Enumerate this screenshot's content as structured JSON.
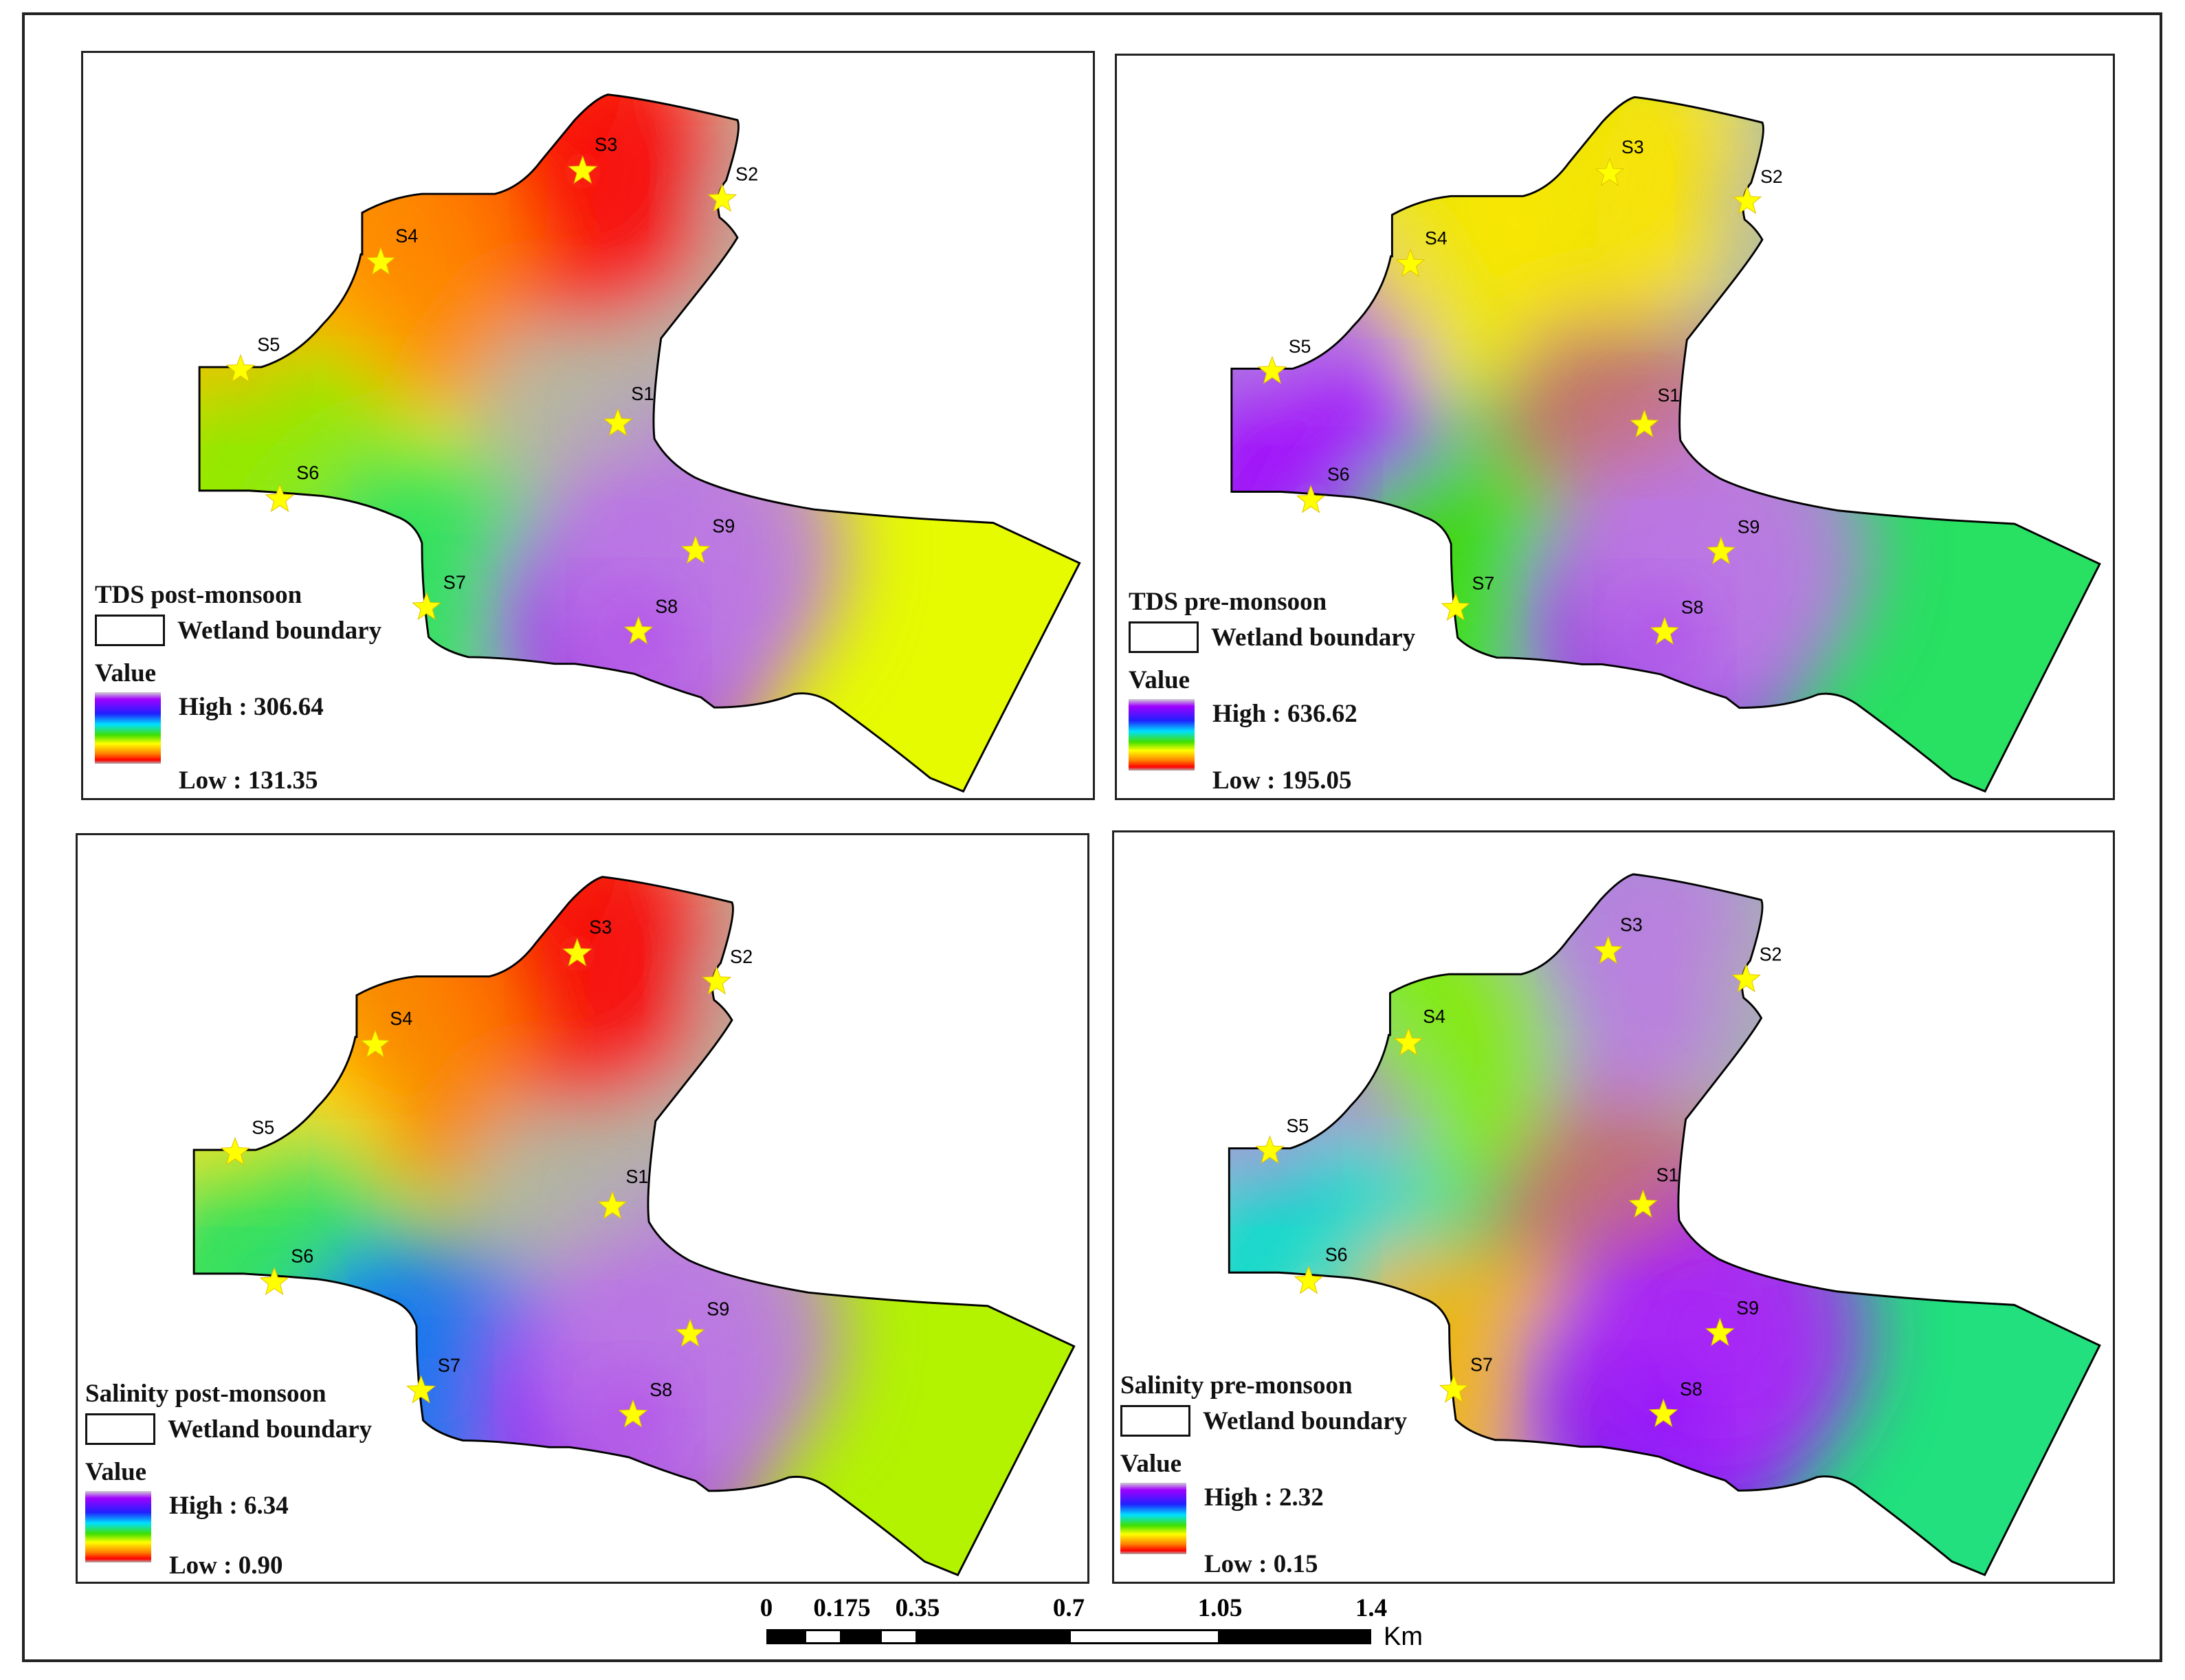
{
  "panels": [
    {
      "title": "TDS post-monsoon",
      "boundary_label": "Wetland boundary",
      "value_label": "Value",
      "high_label": "High : 306.64",
      "low_label": "Low : 131.35",
      "high_value": 306.64,
      "low_value": 131.35,
      "stations": [
        {
          "name": "S1",
          "level": 0.0
        },
        {
          "name": "S2",
          "level": 0.0
        },
        {
          "name": "S3",
          "level": 0.12
        },
        {
          "name": "S4",
          "level": 0.25
        },
        {
          "name": "S5",
          "level": 0.3
        },
        {
          "name": "S6",
          "level": 0.45
        },
        {
          "name": "S7",
          "level": 0.55
        },
        {
          "name": "S8",
          "level": 0.9
        },
        {
          "name": "S9",
          "level": 0.95
        }
      ]
    },
    {
      "title": "TDS pre-monsoon",
      "boundary_label": "Wetland boundary",
      "value_label": "Value",
      "high_label": "High : 636.62",
      "low_label": "Low : 195.05",
      "high_value": 636.62,
      "low_value": 195.05,
      "stations": [
        {
          "name": "S1",
          "level": 0.05
        },
        {
          "name": "S2",
          "level": 0.0
        },
        {
          "name": "S3",
          "level": 0.35
        },
        {
          "name": "S4",
          "level": 0.35
        },
        {
          "name": "S5",
          "level": 0.95
        },
        {
          "name": "S6",
          "level": 0.88
        },
        {
          "name": "S7",
          "level": 0.5
        },
        {
          "name": "S8",
          "level": 0.9
        },
        {
          "name": "S9",
          "level": 0.95
        }
      ]
    },
    {
      "title": "Salinity post-monsoon",
      "boundary_label": "Wetland boundary",
      "value_label": "Value",
      "high_label": "High : 6.34",
      "low_label": "Low : 0.90",
      "high_value": 6.34,
      "low_value": 0.9,
      "stations": [
        {
          "name": "S1",
          "level": 0.0
        },
        {
          "name": "S2",
          "level": 0.0
        },
        {
          "name": "S3",
          "level": 0.12
        },
        {
          "name": "S4",
          "level": 0.25
        },
        {
          "name": "S5",
          "level": 0.35
        },
        {
          "name": "S6",
          "level": 0.55
        },
        {
          "name": "S7",
          "level": 0.7
        },
        {
          "name": "S8",
          "level": 0.9
        },
        {
          "name": "S9",
          "level": 0.95
        }
      ]
    },
    {
      "title": "Salinity pre-monsoon",
      "boundary_label": "Wetland boundary",
      "value_label": "Value",
      "high_label": "High : 2.32",
      "low_label": "Low : 0.15",
      "high_value": 2.32,
      "low_value": 0.15,
      "stations": [
        {
          "name": "S1",
          "level": 0.05
        },
        {
          "name": "S2",
          "level": 0.0
        },
        {
          "name": "S3",
          "level": 0.95
        },
        {
          "name": "S4",
          "level": 0.45
        },
        {
          "name": "S5",
          "level": 0.95
        },
        {
          "name": "S6",
          "level": 0.6
        },
        {
          "name": "S7",
          "level": 0.3
        },
        {
          "name": "S8",
          "level": 0.85
        },
        {
          "name": "S9",
          "level": 0.9
        }
      ]
    }
  ],
  "scale_bar": {
    "ticks": [
      "0",
      "0.175",
      "0.35",
      "0.7",
      "1.05",
      "1.4"
    ],
    "tick_values": [
      0,
      0.175,
      0.35,
      0.7,
      1.05,
      1.4
    ],
    "unit": "Km"
  },
  "colors": {
    "ramp": [
      "#b0b0b0",
      "#ff0000",
      "#ff8000",
      "#ffff00",
      "#40e000",
      "#00e0ff",
      "#2020ff",
      "#a000ff",
      "#d0d0d0"
    ],
    "star": "#ffff00",
    "boundary": "#000000"
  }
}
